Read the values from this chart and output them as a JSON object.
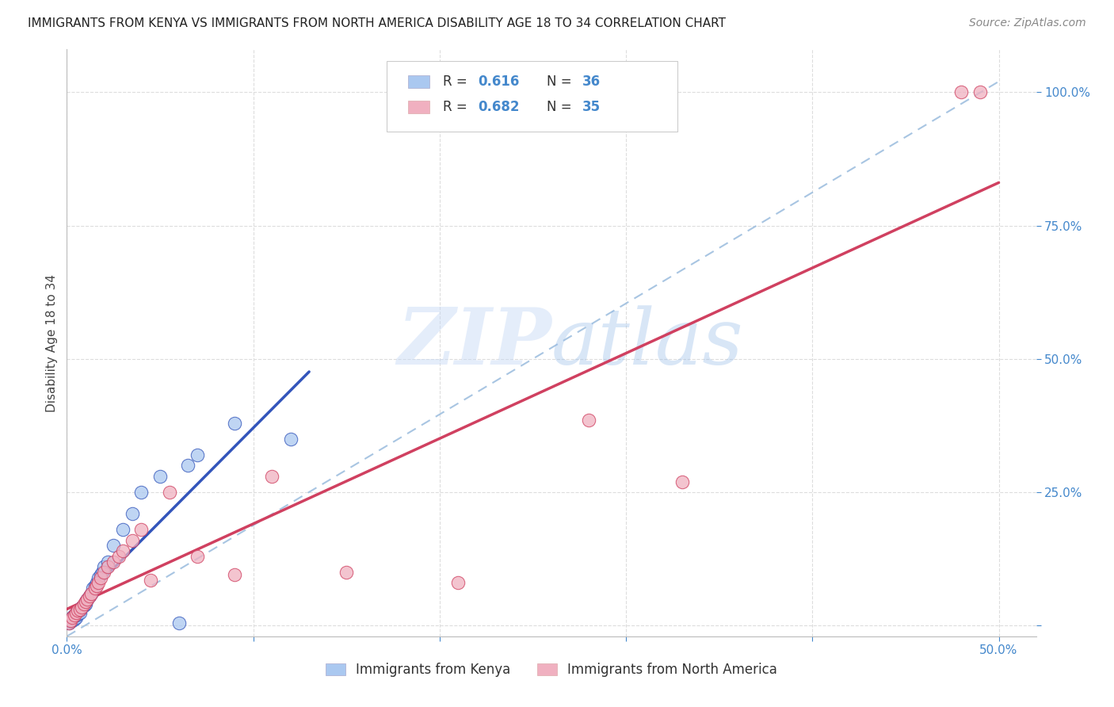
{
  "title": "IMMIGRANTS FROM KENYA VS IMMIGRANTS FROM NORTH AMERICA DISABILITY AGE 18 TO 34 CORRELATION CHART",
  "source": "Source: ZipAtlas.com",
  "ylabel": "Disability Age 18 to 34",
  "xlim": [
    0.0,
    0.52
  ],
  "ylim": [
    -0.02,
    1.08
  ],
  "background_color": "#ffffff",
  "grid_color": "#dddddd",
  "watermark_text": "ZIPatlas",
  "blue_scatter_color": "#aac8f0",
  "blue_line_color": "#3355bb",
  "pink_scatter_color": "#f0b0c0",
  "pink_line_color": "#d04060",
  "dashed_line_color": "#99bbdd",
  "tick_label_color": "#4488cc",
  "kenya_x": [
    0.001,
    0.002,
    0.003,
    0.003,
    0.004,
    0.004,
    0.005,
    0.005,
    0.006,
    0.007,
    0.007,
    0.008,
    0.009,
    0.01,
    0.01,
    0.011,
    0.012,
    0.013,
    0.014,
    0.015,
    0.016,
    0.017,
    0.018,
    0.019,
    0.02,
    0.022,
    0.025,
    0.03,
    0.035,
    0.04,
    0.05,
    0.06,
    0.065,
    0.07,
    0.09,
    0.12
  ],
  "kenya_y": [
    0.005,
    0.008,
    0.01,
    0.015,
    0.012,
    0.018,
    0.015,
    0.02,
    0.022,
    0.025,
    0.03,
    0.035,
    0.038,
    0.04,
    0.045,
    0.05,
    0.055,
    0.06,
    0.07,
    0.075,
    0.08,
    0.09,
    0.095,
    0.1,
    0.11,
    0.12,
    0.15,
    0.18,
    0.21,
    0.25,
    0.28,
    0.005,
    0.3,
    0.32,
    0.38,
    0.35
  ],
  "na_x": [
    0.001,
    0.002,
    0.003,
    0.004,
    0.005,
    0.006,
    0.007,
    0.008,
    0.009,
    0.01,
    0.011,
    0.012,
    0.013,
    0.015,
    0.016,
    0.017,
    0.018,
    0.02,
    0.022,
    0.025,
    0.028,
    0.03,
    0.035,
    0.04,
    0.045,
    0.055,
    0.07,
    0.09,
    0.11,
    0.15,
    0.21,
    0.28,
    0.33,
    0.48,
    0.49
  ],
  "na_y": [
    0.005,
    0.01,
    0.015,
    0.02,
    0.025,
    0.028,
    0.03,
    0.035,
    0.04,
    0.045,
    0.05,
    0.055,
    0.06,
    0.07,
    0.075,
    0.08,
    0.09,
    0.1,
    0.11,
    0.12,
    0.13,
    0.14,
    0.16,
    0.18,
    0.085,
    0.25,
    0.13,
    0.095,
    0.28,
    0.1,
    0.08,
    0.385,
    0.27,
    1.0,
    1.0
  ]
}
